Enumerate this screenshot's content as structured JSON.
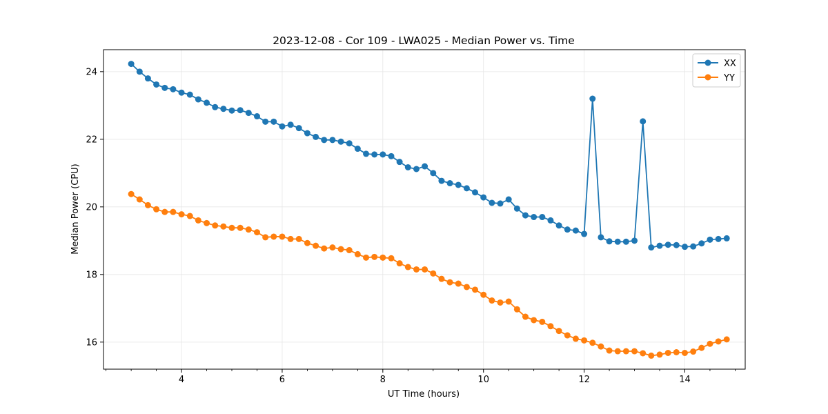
{
  "chart_data": {
    "type": "line",
    "title": "2023-12-08 - Cor 109 - LWA025 - Median Power vs. Time",
    "xlabel": "UT Time (hours)",
    "ylabel": "Median Power (CPU)",
    "xlim": [
      2.45,
      15.2
    ],
    "ylim": [
      15.2,
      24.65
    ],
    "xticks": [
      4,
      6,
      8,
      10,
      12,
      14
    ],
    "xtick_labels": [
      "4",
      "6",
      "8",
      "10",
      "12",
      "14"
    ],
    "yticks": [
      16,
      18,
      20,
      22,
      24
    ],
    "ytick_labels": [
      "16",
      "18",
      "20",
      "22",
      "24"
    ],
    "grid": true,
    "legend_position": "top-right",
    "x": [
      3.0,
      3.167,
      3.333,
      3.5,
      3.667,
      3.833,
      4.0,
      4.167,
      4.333,
      4.5,
      4.667,
      4.833,
      5.0,
      5.167,
      5.333,
      5.5,
      5.667,
      5.833,
      6.0,
      6.167,
      6.333,
      6.5,
      6.667,
      6.833,
      7.0,
      7.167,
      7.333,
      7.5,
      7.667,
      7.833,
      8.0,
      8.167,
      8.333,
      8.5,
      8.667,
      8.833,
      9.0,
      9.167,
      9.333,
      9.5,
      9.667,
      9.833,
      10.0,
      10.167,
      10.333,
      10.5,
      10.667,
      10.833,
      11.0,
      11.167,
      11.333,
      11.5,
      11.667,
      11.833,
      12.0,
      12.167,
      12.333,
      12.5,
      12.667,
      12.833,
      13.0,
      13.167,
      13.333,
      13.5,
      13.667,
      13.833,
      14.0,
      14.167,
      14.333,
      14.5,
      14.667,
      14.833
    ],
    "series": [
      {
        "name": "XX",
        "color": "#1f77b4",
        "values": [
          24.23,
          24.0,
          23.8,
          23.62,
          23.52,
          23.48,
          23.38,
          23.32,
          23.18,
          23.08,
          22.95,
          22.9,
          22.85,
          22.86,
          22.78,
          22.68,
          22.52,
          22.52,
          22.38,
          22.43,
          22.33,
          22.18,
          22.07,
          21.98,
          21.98,
          21.93,
          21.88,
          21.72,
          21.57,
          21.55,
          21.55,
          21.5,
          21.33,
          21.17,
          21.12,
          21.2,
          21.0,
          20.77,
          20.7,
          20.65,
          20.55,
          20.43,
          20.28,
          20.12,
          20.1,
          20.22,
          19.95,
          19.75,
          19.7,
          19.7,
          19.6,
          19.45,
          19.33,
          19.3,
          19.2,
          23.2,
          19.1,
          18.98,
          18.97,
          18.97,
          19.0,
          22.53,
          18.8,
          18.85,
          18.88,
          18.87,
          18.82,
          18.83,
          18.92,
          19.03,
          19.05,
          19.07
        ]
      },
      {
        "name": "YY",
        "color": "#ff7f0e",
        "values": [
          20.38,
          20.22,
          20.05,
          19.93,
          19.85,
          19.85,
          19.78,
          19.73,
          19.6,
          19.52,
          19.45,
          19.42,
          19.38,
          19.38,
          19.33,
          19.25,
          19.1,
          19.12,
          19.12,
          19.05,
          19.05,
          18.93,
          18.85,
          18.77,
          18.8,
          18.75,
          18.72,
          18.6,
          18.5,
          18.52,
          18.5,
          18.48,
          18.33,
          18.22,
          18.15,
          18.15,
          18.03,
          17.87,
          17.77,
          17.73,
          17.63,
          17.55,
          17.4,
          17.23,
          17.17,
          17.2,
          16.97,
          16.75,
          16.65,
          16.6,
          16.47,
          16.33,
          16.2,
          16.1,
          16.05,
          15.98,
          15.87,
          15.75,
          15.73,
          15.73,
          15.73,
          15.67,
          15.6,
          15.63,
          15.68,
          15.7,
          15.68,
          15.72,
          15.83,
          15.95,
          16.02,
          16.08
        ]
      }
    ]
  }
}
